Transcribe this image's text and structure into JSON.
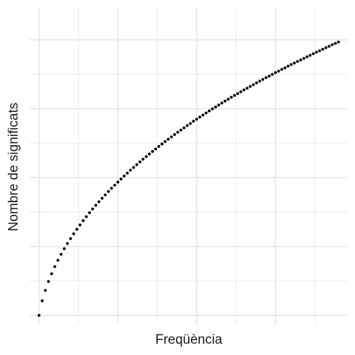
{
  "chart_data": {
    "type": "scatter",
    "title": "",
    "xlabel": "Freqüència",
    "ylabel": "Nombre de significats",
    "x_tick_labels": [],
    "y_tick_labels": [],
    "grid": true,
    "legend": "none",
    "point_color": "#000000",
    "grid_color": "#ebebeb",
    "xlim": [
      -3,
      98
    ],
    "ylim": [
      -0.5,
      17.9
    ],
    "series": [
      {
        "x": [
          0,
          1,
          2,
          3,
          4,
          5,
          6,
          7,
          8,
          9,
          10,
          11,
          12,
          13,
          14,
          15,
          16,
          17,
          18,
          19,
          20,
          21,
          22,
          23,
          24,
          25,
          26,
          27,
          28,
          29,
          30,
          31,
          32,
          33,
          34,
          35,
          36,
          37,
          38,
          39,
          40,
          41,
          42,
          43,
          44,
          45,
          46,
          47,
          48,
          49,
          50,
          51,
          52,
          53,
          54,
          55,
          56,
          57,
          58,
          59,
          60,
          61,
          62,
          63,
          64,
          65,
          66,
          67,
          68,
          69,
          70,
          71,
          72,
          73,
          74,
          75,
          76,
          77,
          78,
          79,
          80,
          81,
          82,
          83,
          84,
          85,
          86,
          87,
          88,
          89,
          90,
          91,
          92,
          93,
          94,
          95
        ],
        "y": [
          0.0,
          0.85,
          1.45,
          1.97,
          2.42,
          2.83,
          3.2,
          3.55,
          3.87,
          4.17,
          4.46,
          4.74,
          5.0,
          5.25,
          5.5,
          5.73,
          5.96,
          6.18,
          6.39,
          6.6,
          6.8,
          7.0,
          7.19,
          7.38,
          7.56,
          7.74,
          7.92,
          8.09,
          8.26,
          8.43,
          8.59,
          8.75,
          8.91,
          9.07,
          9.22,
          9.37,
          9.52,
          9.66,
          9.81,
          9.95,
          10.09,
          10.23,
          10.36,
          10.5,
          10.63,
          10.76,
          10.89,
          11.02,
          11.14,
          11.27,
          11.39,
          11.51,
          11.63,
          11.75,
          11.87,
          11.99,
          12.1,
          12.21,
          12.33,
          12.44,
          12.55,
          12.66,
          12.77,
          12.87,
          12.98,
          13.09,
          13.19,
          13.29,
          13.39,
          13.5,
          13.6,
          13.7,
          13.8,
          13.89,
          13.99,
          14.09,
          14.18,
          14.28,
          14.37,
          14.47,
          14.56,
          14.65,
          14.74,
          14.83,
          14.92,
          15.01,
          15.1,
          15.19,
          15.28,
          15.36,
          15.45,
          15.54,
          15.62,
          15.71,
          15.79,
          15.87
        ]
      }
    ]
  }
}
